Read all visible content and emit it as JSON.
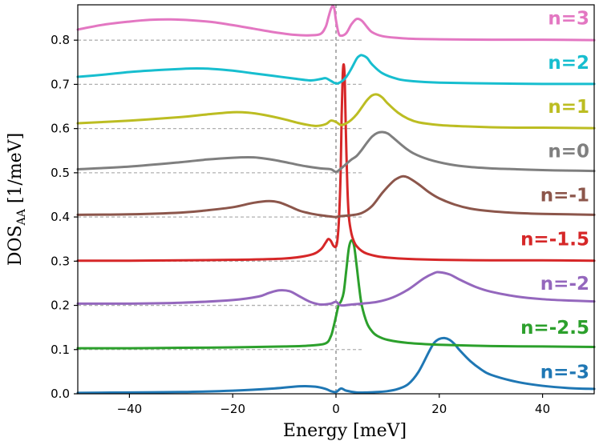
{
  "chart_data": {
    "type": "line",
    "xlabel": "Energy  [meV]",
    "ylabel_main": "DOS",
    "ylabel_sub": "AA",
    "ylabel_unit": "  [1/meV]",
    "xlim": [
      -50,
      50
    ],
    "ylim": [
      0.0,
      0.88
    ],
    "xticks": [
      -40,
      -20,
      0,
      20,
      40
    ],
    "xtick_labels": [
      "−40",
      "−20",
      "0",
      "20",
      "40"
    ],
    "yticks": [
      0.0,
      0.1,
      0.2,
      0.3,
      0.4,
      0.5,
      0.6,
      0.7,
      0.8
    ],
    "ytick_labels": [
      "0.0",
      "0.1",
      "0.2",
      "0.3",
      "0.4",
      "0.5",
      "0.6",
      "0.7",
      "0.8"
    ],
    "vertical_reference_x": 0,
    "baseline_dash_range": [
      -50,
      5
    ],
    "series": [
      {
        "name": "n=-3",
        "color": "#1f77b4",
        "offset": 0.0,
        "x": [
          -50,
          -40,
          -30,
          -20,
          -12,
          -7,
          -4,
          -2,
          -1,
          0,
          1,
          2,
          4,
          6,
          8,
          10,
          12,
          14,
          16,
          18,
          19,
          20,
          21,
          22,
          23,
          24,
          26,
          28,
          30,
          35,
          40,
          45,
          50
        ],
        "y": [
          0.002,
          0.003,
          0.004,
          0.007,
          0.012,
          0.017,
          0.016,
          0.011,
          0.006,
          0.004,
          0.012,
          0.007,
          0.003,
          0.003,
          0.004,
          0.006,
          0.011,
          0.022,
          0.05,
          0.095,
          0.115,
          0.124,
          0.126,
          0.122,
          0.112,
          0.098,
          0.074,
          0.056,
          0.043,
          0.027,
          0.018,
          0.013,
          0.011
        ]
      },
      {
        "name": "n=-2.5",
        "color": "#2ca02c",
        "offset": 0.1,
        "x": [
          -50,
          -40,
          -30,
          -20,
          -10,
          -5,
          -2,
          -1,
          -0.5,
          0,
          0.5,
          1,
          1.5,
          2,
          2.5,
          3,
          3.5,
          4,
          4.5,
          5,
          6,
          7,
          8,
          10,
          14,
          20,
          30,
          40,
          50
        ],
        "y": [
          0.003,
          0.003,
          0.004,
          0.005,
          0.007,
          0.009,
          0.014,
          0.03,
          0.05,
          0.075,
          0.1,
          0.11,
          0.13,
          0.18,
          0.23,
          0.247,
          0.235,
          0.19,
          0.14,
          0.1,
          0.06,
          0.041,
          0.031,
          0.022,
          0.015,
          0.011,
          0.008,
          0.007,
          0.006
        ]
      },
      {
        "name": "n=-2",
        "color": "#9467bd",
        "offset": 0.2,
        "x": [
          -50,
          -40,
          -30,
          -20,
          -15,
          -13,
          -11,
          -9,
          -7,
          -5,
          -3,
          -1,
          0,
          1,
          3,
          5,
          8,
          11,
          14,
          17,
          19,
          20,
          22,
          24,
          27,
          30,
          35,
          40,
          45,
          50
        ],
        "y": [
          0.004,
          0.004,
          0.006,
          0.012,
          0.02,
          0.028,
          0.034,
          0.032,
          0.02,
          0.008,
          0.002,
          0.004,
          0.008,
          0.0,
          0.002,
          0.004,
          0.008,
          0.018,
          0.036,
          0.061,
          0.073,
          0.075,
          0.07,
          0.058,
          0.042,
          0.031,
          0.02,
          0.014,
          0.011,
          0.009
        ]
      },
      {
        "name": "n=-1.5",
        "color": "#d62728",
        "offset": 0.3,
        "x": [
          -50,
          -40,
          -30,
          -20,
          -10,
          -5,
          -3,
          -2,
          -1.5,
          -1,
          -0.5,
          0,
          0.3,
          0.6,
          0.9,
          1.1,
          1.3,
          1.5,
          1.7,
          1.9,
          2.2,
          2.5,
          3,
          3.5,
          4,
          5,
          6,
          8,
          10,
          14,
          20,
          30,
          40,
          50
        ],
        "y": [
          0.001,
          0.001,
          0.002,
          0.003,
          0.006,
          0.014,
          0.026,
          0.042,
          0.05,
          0.046,
          0.035,
          0.033,
          0.05,
          0.1,
          0.2,
          0.33,
          0.42,
          0.445,
          0.41,
          0.3,
          0.17,
          0.1,
          0.062,
          0.044,
          0.034,
          0.023,
          0.017,
          0.011,
          0.008,
          0.005,
          0.003,
          0.002,
          0.002,
          0.001
        ]
      },
      {
        "name": "n=-1",
        "color": "#8c564b",
        "offset": 0.4,
        "x": [
          -50,
          -40,
          -30,
          -25,
          -20,
          -16,
          -13,
          -11,
          -9,
          -7,
          -5,
          -3,
          -1,
          0,
          1,
          3,
          5,
          7,
          9,
          11,
          12,
          13,
          14,
          16,
          18,
          20,
          23,
          26,
          30,
          35,
          40,
          45,
          50
        ],
        "y": [
          0.005,
          0.006,
          0.01,
          0.015,
          0.022,
          0.032,
          0.036,
          0.033,
          0.024,
          0.014,
          0.008,
          0.004,
          0.001,
          0.0,
          0.002,
          0.004,
          0.009,
          0.025,
          0.055,
          0.08,
          0.088,
          0.092,
          0.089,
          0.074,
          0.056,
          0.042,
          0.028,
          0.019,
          0.013,
          0.009,
          0.007,
          0.006,
          0.005
        ]
      },
      {
        "name": "n=0",
        "color": "#7f7f7f",
        "offset": 0.5,
        "x": [
          -50,
          -40,
          -30,
          -25,
          -20,
          -17,
          -15,
          -12,
          -9,
          -6,
          -3,
          -1,
          0,
          1,
          2,
          3,
          4,
          5,
          6,
          7,
          8,
          9,
          10,
          11,
          13,
          15,
          18,
          22,
          26,
          30,
          35,
          40,
          45,
          50
        ],
        "y": [
          0.008,
          0.014,
          0.024,
          0.03,
          0.034,
          0.035,
          0.034,
          0.029,
          0.022,
          0.015,
          0.01,
          0.008,
          0.002,
          0.01,
          0.02,
          0.03,
          0.038,
          0.052,
          0.068,
          0.082,
          0.09,
          0.092,
          0.089,
          0.08,
          0.06,
          0.044,
          0.03,
          0.019,
          0.013,
          0.01,
          0.008,
          0.006,
          0.005,
          0.004
        ]
      },
      {
        "name": "n=1",
        "color": "#bcbd22",
        "offset": 0.6,
        "x": [
          -50,
          -40,
          -30,
          -25,
          -20,
          -17,
          -14,
          -10,
          -7,
          -4,
          -2,
          -1,
          0,
          1,
          2,
          3,
          4,
          5,
          6,
          7,
          8,
          9,
          10,
          12,
          14,
          16,
          20,
          25,
          30,
          35,
          40,
          50
        ],
        "y": [
          0.012,
          0.018,
          0.026,
          0.032,
          0.037,
          0.036,
          0.031,
          0.021,
          0.012,
          0.006,
          0.01,
          0.018,
          0.015,
          0.008,
          0.012,
          0.02,
          0.032,
          0.048,
          0.064,
          0.075,
          0.077,
          0.07,
          0.057,
          0.036,
          0.022,
          0.014,
          0.008,
          0.005,
          0.003,
          0.002,
          0.002,
          0.001
        ]
      },
      {
        "name": "n=2",
        "color": "#17becf",
        "offset": 0.7,
        "x": [
          -50,
          -45,
          -40,
          -35,
          -30,
          -27,
          -24,
          -20,
          -16,
          -12,
          -8,
          -5,
          -3,
          -2,
          -1,
          0,
          1,
          2,
          3,
          4,
          4.5,
          5,
          6,
          7,
          9,
          12,
          15,
          20,
          30,
          40,
          50
        ],
        "y": [
          0.017,
          0.022,
          0.028,
          0.032,
          0.035,
          0.036,
          0.035,
          0.031,
          0.025,
          0.019,
          0.013,
          0.009,
          0.012,
          0.014,
          0.008,
          0.002,
          0.006,
          0.017,
          0.036,
          0.058,
          0.064,
          0.066,
          0.06,
          0.045,
          0.025,
          0.012,
          0.007,
          0.004,
          0.002,
          0.001,
          0.001
        ]
      },
      {
        "name": "n=3",
        "color": "#e377c2",
        "offset": 0.8,
        "x": [
          -50,
          -45,
          -40,
          -36,
          -32,
          -28,
          -24,
          -20,
          -16,
          -12,
          -8,
          -5,
          -3,
          -2,
          -1.5,
          -1,
          -0.6,
          -0.3,
          0,
          0.5,
          1,
          2,
          3,
          4,
          5,
          6,
          7,
          9,
          12,
          15,
          20,
          30,
          40,
          50
        ],
        "y": [
          0.024,
          0.035,
          0.042,
          0.046,
          0.047,
          0.045,
          0.041,
          0.034,
          0.026,
          0.018,
          0.012,
          0.011,
          0.014,
          0.03,
          0.05,
          0.07,
          0.078,
          0.07,
          0.045,
          0.016,
          0.01,
          0.016,
          0.036,
          0.048,
          0.044,
          0.03,
          0.018,
          0.009,
          0.005,
          0.003,
          0.002,
          0.001,
          0.001,
          0.0
        ]
      }
    ]
  }
}
